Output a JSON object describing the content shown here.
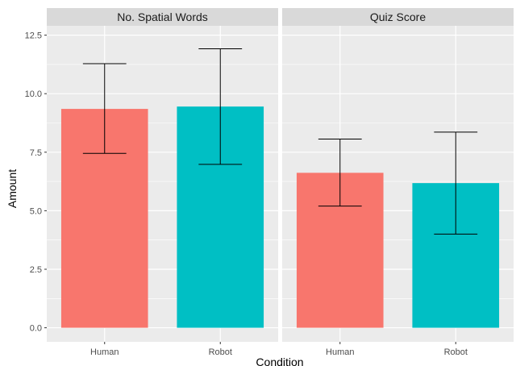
{
  "chart_data": {
    "type": "bar",
    "facets": [
      {
        "title": "No. Spatial Words",
        "categories": [
          "Human",
          "Robot"
        ],
        "values": [
          9.35,
          9.45
        ],
        "error_low": [
          7.45,
          6.98
        ],
        "error_high": [
          11.28,
          11.92
        ]
      },
      {
        "title": "Quiz Score",
        "categories": [
          "Human",
          "Robot"
        ],
        "values": [
          6.62,
          6.18
        ],
        "error_low": [
          5.2,
          4.0
        ],
        "error_high": [
          8.06,
          8.36
        ]
      }
    ],
    "xlabel": "Condition",
    "ylabel": "Amount",
    "ylim": [
      -0.6,
      12.9
    ],
    "yticks": [
      0.0,
      2.5,
      5.0,
      7.5,
      10.0,
      12.5
    ],
    "ytick_labels": [
      "0.0",
      "2.5",
      "5.0",
      "7.5",
      "10.0",
      "12.5"
    ],
    "grid": true,
    "colors": {
      "Human": "#F8766D",
      "Robot": "#00BFC4",
      "panel": "#EBEBEB",
      "strip": "#D9D9D9",
      "grid": "#FFFFFF",
      "errorbar": "#000000"
    }
  }
}
